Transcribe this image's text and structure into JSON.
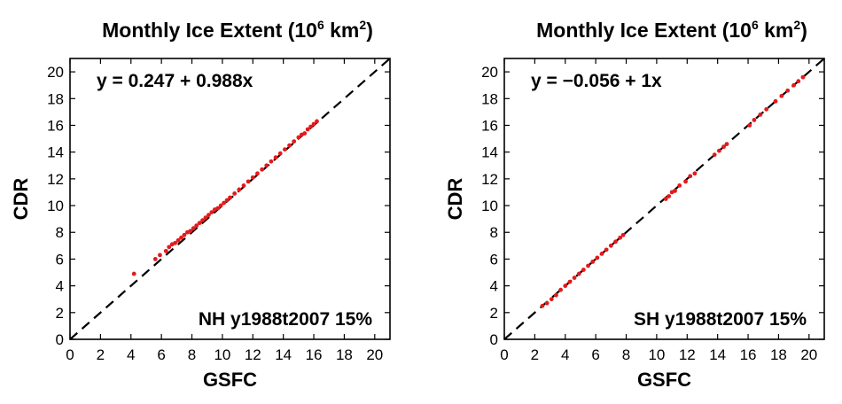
{
  "chart_data": [
    {
      "type": "scatter",
      "title": "Monthly Ice Extent (10",
      "title_exp1": "6",
      "title_mid": " km",
      "title_exp2": "2",
      "title_end": ")",
      "xlabel": "GSFC",
      "ylabel": "CDR",
      "xlim": [
        0,
        21
      ],
      "ylim": [
        0,
        21
      ],
      "xticks": [
        "0",
        "2",
        "4",
        "6",
        "8",
        "10",
        "12",
        "14",
        "16",
        "18",
        "20"
      ],
      "yticks": [
        "0",
        "2",
        "4",
        "6",
        "8",
        "10",
        "12",
        "14",
        "16",
        "18",
        "20"
      ],
      "equation": "y = 0.247 + 0.988x",
      "annotation": "NH y1988t2007  15%",
      "grid": false,
      "reference_line": {
        "style": "dashed",
        "color": "#000000",
        "intercept": 0,
        "slope": 1
      },
      "series": [
        {
          "color": "#e31a1c",
          "x": [
            4.2,
            5.6,
            5.9,
            6.3,
            6.5,
            6.7,
            6.9,
            7.1,
            7.3,
            7.5,
            7.7,
            7.9,
            8.1,
            8.3,
            8.5,
            8.7,
            8.9,
            9.1,
            9.3,
            9.5,
            9.7,
            9.9,
            10.1,
            10.3,
            10.5,
            10.8,
            11.1,
            11.4,
            11.7,
            12.0,
            12.3,
            12.6,
            12.9,
            13.2,
            13.5,
            13.8,
            14.1,
            14.4,
            14.7,
            15.0,
            15.2,
            15.4,
            15.6,
            15.8,
            16.0,
            16.2
          ],
          "y": [
            4.9,
            6.0,
            6.3,
            6.6,
            6.9,
            7.1,
            7.2,
            7.4,
            7.6,
            7.8,
            8.0,
            8.1,
            8.3,
            8.5,
            8.7,
            8.9,
            9.1,
            9.3,
            9.5,
            9.7,
            9.8,
            10.0,
            10.2,
            10.4,
            10.6,
            10.9,
            11.2,
            11.5,
            11.8,
            12.1,
            12.4,
            12.7,
            13.0,
            13.3,
            13.6,
            13.9,
            14.2,
            14.5,
            14.8,
            15.1,
            15.3,
            15.4,
            15.7,
            15.9,
            16.1,
            16.3
          ]
        }
      ]
    },
    {
      "type": "scatter",
      "title": "Monthly Ice Extent (10",
      "title_exp1": "6",
      "title_mid": " km",
      "title_exp2": "2",
      "title_end": ")",
      "xlabel": "GSFC",
      "ylabel": "CDR",
      "xlim": [
        0,
        21
      ],
      "ylim": [
        0,
        21
      ],
      "xticks": [
        "0",
        "2",
        "4",
        "6",
        "8",
        "10",
        "12",
        "14",
        "16",
        "18",
        "20"
      ],
      "yticks": [
        "0",
        "2",
        "4",
        "6",
        "8",
        "10",
        "12",
        "14",
        "16",
        "18",
        "20"
      ],
      "equation": "y = −0.056 + 1x",
      "annotation": "SH y1988t2007  15%",
      "grid": false,
      "reference_line": {
        "style": "dashed",
        "color": "#000000",
        "intercept": 0,
        "slope": 1
      },
      "series": [
        {
          "color": "#e31a1c",
          "x": [
            2.5,
            2.8,
            3.1,
            3.4,
            3.7,
            4.0,
            4.3,
            4.6,
            4.9,
            5.2,
            5.5,
            5.8,
            6.1,
            6.4,
            6.7,
            7.0,
            7.3,
            7.6,
            7.8,
            10.6,
            10.8,
            11.0,
            11.2,
            11.5,
            11.9,
            12.2,
            12.5,
            13.8,
            14.1,
            14.4,
            14.6,
            16.1,
            16.4,
            16.8,
            17.2,
            17.8,
            18.2,
            18.6,
            19.0,
            19.3,
            19.6
          ],
          "y": [
            2.5,
            2.7,
            3.0,
            3.3,
            3.7,
            4.0,
            4.3,
            4.6,
            4.9,
            5.2,
            5.5,
            5.8,
            6.1,
            6.4,
            6.7,
            7.0,
            7.3,
            7.6,
            7.8,
            10.5,
            10.7,
            11.0,
            11.1,
            11.5,
            11.8,
            12.2,
            12.4,
            13.8,
            14.1,
            14.4,
            14.6,
            16.0,
            16.4,
            16.8,
            17.2,
            17.8,
            18.2,
            18.6,
            19.0,
            19.3,
            19.6
          ]
        }
      ]
    }
  ]
}
